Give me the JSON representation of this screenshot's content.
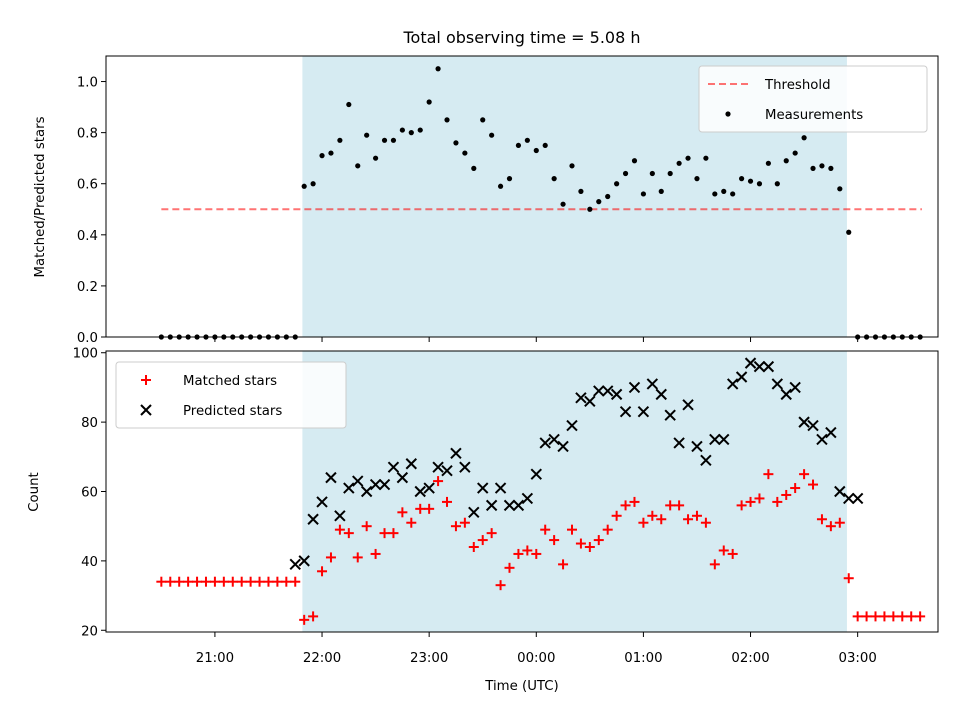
{
  "colors": {
    "shade": "#add8e6",
    "threshold": "#ff0000",
    "measurements": "#000000",
    "matched": "#ff0000",
    "predicted": "#000000"
  },
  "chart_data": [
    {
      "type": "scatter",
      "title": "Total observing time = 5.08 h",
      "ylabel": "Matched/Predicted stars",
      "xlabel": "",
      "ylim": [
        0,
        1.1
      ],
      "yticks": [
        "0.0",
        "0.2",
        "0.4",
        "0.6",
        "0.8",
        "1.0"
      ],
      "shaded_span": [
        "21:49",
        "02:54"
      ],
      "legend": {
        "position": "upper right",
        "entries": [
          "Threshold",
          "Measurements"
        ]
      },
      "threshold": {
        "name": "Threshold",
        "value": 0.5,
        "x_from": "20:30",
        "x_to": "03:36",
        "style": "dashed"
      },
      "series": [
        {
          "name": "Measurements",
          "x": [
            "20:30",
            "20:35",
            "20:40",
            "20:45",
            "20:50",
            "20:55",
            "21:00",
            "21:05",
            "21:10",
            "21:15",
            "21:20",
            "21:25",
            "21:30",
            "21:35",
            "21:40",
            "21:45",
            "21:50",
            "21:55",
            "22:00",
            "22:05",
            "22:10",
            "22:15",
            "22:20",
            "22:25",
            "22:30",
            "22:35",
            "22:40",
            "22:45",
            "22:50",
            "22:55",
            "23:00",
            "23:05",
            "23:10",
            "23:15",
            "23:20",
            "23:25",
            "23:30",
            "23:35",
            "23:40",
            "23:45",
            "23:50",
            "23:55",
            "00:00",
            "00:05",
            "00:10",
            "00:15",
            "00:20",
            "00:25",
            "00:30",
            "00:35",
            "00:40",
            "00:45",
            "00:50",
            "00:55",
            "01:00",
            "01:05",
            "01:10",
            "01:15",
            "01:20",
            "01:25",
            "01:30",
            "01:35",
            "01:40",
            "01:45",
            "01:50",
            "01:55",
            "02:00",
            "02:05",
            "02:10",
            "02:15",
            "02:20",
            "02:25",
            "02:30",
            "02:35",
            "02:40",
            "02:45",
            "02:50",
            "02:55",
            "03:00",
            "03:05",
            "03:10",
            "03:15",
            "03:20",
            "03:25",
            "03:30",
            "03:35"
          ],
          "y": [
            0,
            0,
            0,
            0,
            0,
            0,
            0,
            0,
            0,
            0,
            0,
            0,
            0,
            0,
            0,
            0,
            0.59,
            0.6,
            0.71,
            0.72,
            0.77,
            0.91,
            0.67,
            0.79,
            0.7,
            0.77,
            0.77,
            0.81,
            0.8,
            0.81,
            0.92,
            1.05,
            0.85,
            0.76,
            0.72,
            0.66,
            0.85,
            0.79,
            0.59,
            0.62,
            0.75,
            0.77,
            0.73,
            0.75,
            0.62,
            0.52,
            0.67,
            0.57,
            0.5,
            0.53,
            0.55,
            0.6,
            0.64,
            0.69,
            0.56,
            0.64,
            0.57,
            0.64,
            0.68,
            0.7,
            0.62,
            0.7,
            0.56,
            0.57,
            0.56,
            0.62,
            0.61,
            0.6,
            0.68,
            0.6,
            0.69,
            0.72,
            0.78,
            0.66,
            0.67,
            0.66,
            0.58,
            0.41,
            0,
            0,
            0,
            0,
            0,
            0,
            0,
            0
          ]
        }
      ]
    },
    {
      "type": "scatter",
      "title": "",
      "ylabel": "Count",
      "xlabel": "Time (UTC)",
      "ylim": [
        19.5,
        100.5
      ],
      "yticks": [
        "20",
        "40",
        "60",
        "80",
        "100"
      ],
      "xticks": [
        "21:00",
        "22:00",
        "23:00",
        "00:00",
        "01:00",
        "02:00",
        "03:00"
      ],
      "shaded_span": [
        "21:49",
        "02:54"
      ],
      "legend": {
        "position": "upper left",
        "entries": [
          "Matched stars",
          "Predicted stars"
        ]
      },
      "series": [
        {
          "name": "Matched stars",
          "marker": "+",
          "x": [
            "20:30",
            "20:35",
            "20:40",
            "20:45",
            "20:50",
            "20:55",
            "21:00",
            "21:05",
            "21:10",
            "21:15",
            "21:20",
            "21:25",
            "21:30",
            "21:35",
            "21:40",
            "21:45",
            "21:50",
            "21:55",
            "22:00",
            "22:05",
            "22:10",
            "22:15",
            "22:20",
            "22:25",
            "22:30",
            "22:35",
            "22:40",
            "22:45",
            "22:50",
            "22:55",
            "23:00",
            "23:05",
            "23:10",
            "23:15",
            "23:20",
            "23:25",
            "23:30",
            "23:35",
            "23:40",
            "23:45",
            "23:50",
            "23:55",
            "00:00",
            "00:05",
            "00:10",
            "00:15",
            "00:20",
            "00:25",
            "00:30",
            "00:35",
            "00:40",
            "00:45",
            "00:50",
            "00:55",
            "01:00",
            "01:05",
            "01:10",
            "01:15",
            "01:20",
            "01:25",
            "01:30",
            "01:35",
            "01:40",
            "01:45",
            "01:50",
            "01:55",
            "02:00",
            "02:05",
            "02:10",
            "02:15",
            "02:20",
            "02:25",
            "02:30",
            "02:35",
            "02:40",
            "02:45",
            "02:50",
            "02:55",
            "03:00",
            "03:05",
            "03:10",
            "03:15",
            "03:20",
            "03:25",
            "03:30",
            "03:35"
          ],
          "y": [
            34,
            34,
            34,
            34,
            34,
            34,
            34,
            34,
            34,
            34,
            34,
            34,
            34,
            34,
            34,
            34,
            23,
            24,
            37,
            41,
            49,
            48,
            41,
            50,
            42,
            48,
            48,
            54,
            51,
            55,
            55,
            63,
            57,
            50,
            51,
            44,
            46,
            48,
            33,
            38,
            42,
            43,
            42,
            49,
            46,
            39,
            49,
            45,
            44,
            46,
            49,
            53,
            56,
            57,
            51,
            53,
            52,
            56,
            56,
            52,
            53,
            51,
            39,
            43,
            42,
            56,
            57,
            58,
            65,
            57,
            59,
            61,
            65,
            62,
            52,
            50,
            51,
            35,
            24,
            24,
            24,
            24,
            24,
            24,
            24,
            24
          ]
        },
        {
          "name": "Predicted stars",
          "marker": "x",
          "x": [
            "21:45",
            "21:50",
            "21:55",
            "22:00",
            "22:05",
            "22:10",
            "22:15",
            "22:20",
            "22:25",
            "22:30",
            "22:35",
            "22:40",
            "22:45",
            "22:50",
            "22:55",
            "23:00",
            "23:05",
            "23:10",
            "23:15",
            "23:20",
            "23:25",
            "23:30",
            "23:35",
            "23:40",
            "23:45",
            "23:50",
            "23:55",
            "00:00",
            "00:05",
            "00:10",
            "00:15",
            "00:20",
            "00:25",
            "00:30",
            "00:35",
            "00:40",
            "00:45",
            "00:50",
            "00:55",
            "01:00",
            "01:05",
            "01:10",
            "01:15",
            "01:20",
            "01:25",
            "01:30",
            "01:35",
            "01:40",
            "01:45",
            "01:50",
            "01:55",
            "02:00",
            "02:05",
            "02:10",
            "02:15",
            "02:20",
            "02:25",
            "02:30",
            "02:35",
            "02:40",
            "02:45",
            "02:50",
            "02:55",
            "03:00"
          ],
          "y": [
            39,
            40,
            52,
            57,
            64,
            53,
            61,
            63,
            60,
            62,
            62,
            67,
            64,
            68,
            60,
            61,
            67,
            66,
            71,
            67,
            54,
            61,
            56,
            61,
            56,
            56,
            58,
            65,
            74,
            75,
            73,
            79,
            87,
            86,
            89,
            89,
            88,
            83,
            90,
            83,
            91,
            88,
            82,
            74,
            85,
            73,
            69,
            75,
            75,
            91,
            93,
            97,
            96,
            96,
            91,
            88,
            90,
            80,
            79,
            75,
            77,
            60,
            58,
            58
          ]
        }
      ]
    }
  ]
}
